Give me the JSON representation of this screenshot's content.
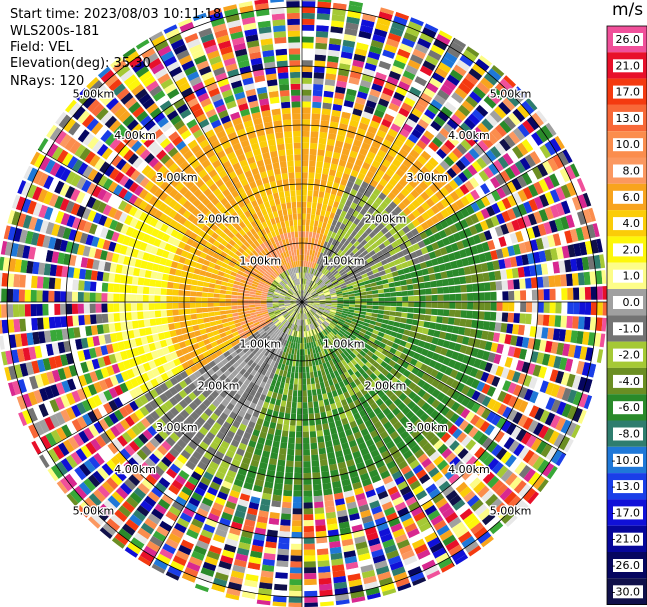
{
  "header": {
    "start_time": "Start time: 2023/08/03 10:11:18",
    "station": "WLS200s-181",
    "field": "Field: VEL",
    "elevation": "Elevation(deg): 35.30",
    "nrays": "NRays: 120"
  },
  "colorbar": {
    "unit": "m/s",
    "levels": [
      {
        "label": "26.0",
        "color": "#f0509a"
      },
      {
        "label": "21.0",
        "color": "#e8102a"
      },
      {
        "label": "17.0",
        "color": "#f43a10"
      },
      {
        "label": "13.0",
        "color": "#f86838"
      },
      {
        "label": "10.0",
        "color": "#fb8d4d"
      },
      {
        "label": "8.0",
        "color": "#fb9860"
      },
      {
        "label": "6.0",
        "color": "#f8a41e"
      },
      {
        "label": "4.0",
        "color": "#fbcc08"
      },
      {
        "label": "2.0",
        "color": "#fdf70a"
      },
      {
        "label": "1.0",
        "color": "#fdfd88"
      },
      {
        "label": "0.0",
        "color": "#a0a0a0"
      },
      {
        "label": "-1.0",
        "color": "#747474"
      },
      {
        "label": "-2.0",
        "color": "#a5c935"
      },
      {
        "label": "-4.0",
        "color": "#6b8e23"
      },
      {
        "label": "-6.0",
        "color": "#2a8a2a"
      },
      {
        "label": "-8.0",
        "color": "#2e7d6e"
      },
      {
        "label": "-10.0",
        "color": "#1f78d8"
      },
      {
        "label": "-13.0",
        "color": "#1a3ee8"
      },
      {
        "label": "-17.0",
        "color": "#1010d8"
      },
      {
        "label": "-21.0",
        "color": "#06069a"
      },
      {
        "label": "-26.0",
        "color": "#060660"
      },
      {
        "label": "-30.0",
        "color": "#10104a"
      }
    ]
  },
  "range_rings": [
    {
      "label": "1.00km"
    },
    {
      "label": "2.00km"
    },
    {
      "label": "3.00km"
    },
    {
      "label": "4.00km"
    },
    {
      "label": "5.00km"
    }
  ],
  "chart_data": {
    "type": "heatmap",
    "title": "",
    "field": "VEL",
    "unit": "m/s",
    "elevation_deg": 35.3,
    "n_rays": 120,
    "range_rings_km": [
      1,
      2,
      3,
      4,
      5
    ],
    "max_range_km": 5.0,
    "radial_structure": [
      {
        "range_km": [
          0.0,
          0.6
        ],
        "pattern": "mixed near-zero gray, green and yellow"
      },
      {
        "range_km": [
          0.6,
          2.3
        ],
        "pattern": "west/north half positive (yellow 1-4, orange 6-10 at 1-2 km W); east/south half negative (green -4 to -6, gray -1 band on NE)"
      },
      {
        "range_km": [
          2.3,
          3.3
        ],
        "pattern": "yellow 2-4 on W/NW, orange 6 on N/NW; green -6 on S/SE; gray 0 band WSW-SW"
      },
      {
        "range_km": [
          3.3,
          5.2
        ],
        "pattern": "noise: all colors random"
      }
    ]
  }
}
